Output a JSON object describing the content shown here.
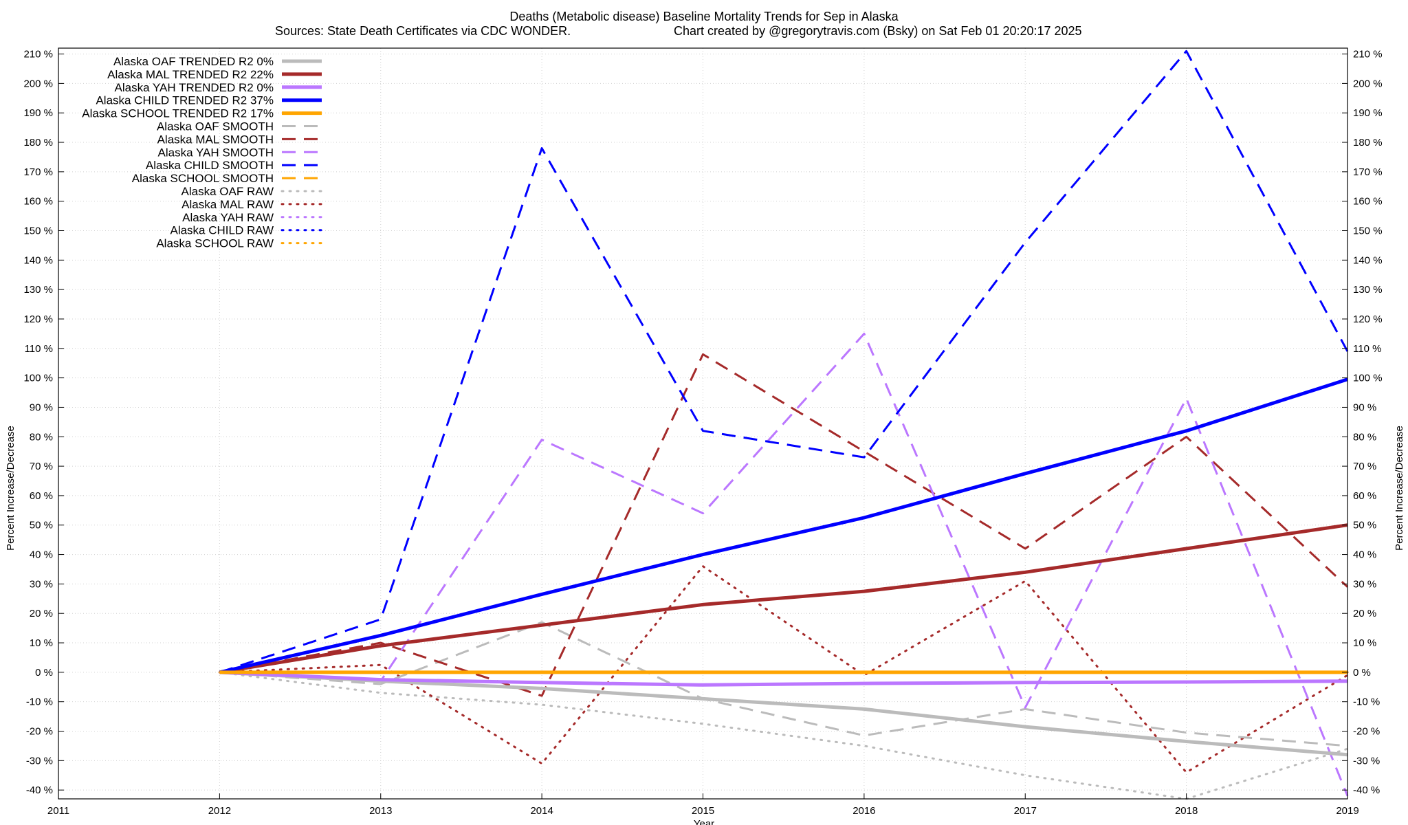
{
  "chart_data": {
    "type": "line",
    "title": "Deaths (Metabolic disease)  Baseline Mortality Trends for Sep in Alaska",
    "subtitle_left": "Sources: State Death Certificates via CDC WONDER.",
    "subtitle_right": "Chart created by @gregorytravis.com (Bsky) on Sat Feb 01 20:20:17 2025",
    "xlabel": "Year",
    "ylabel": "Percent Increase/Decrease",
    "ylabel_right": "Percent Increase/Decrease",
    "xlim": [
      2011,
      2019
    ],
    "ylim": [
      -43,
      212
    ],
    "x_ticks": [
      2011,
      2012,
      2013,
      2014,
      2015,
      2016,
      2017,
      2018,
      2019
    ],
    "y_ticks": [
      -40,
      -30,
      -20,
      -10,
      0,
      10,
      20,
      30,
      40,
      50,
      60,
      70,
      80,
      90,
      100,
      110,
      120,
      130,
      140,
      150,
      160,
      170,
      180,
      190,
      200,
      210
    ],
    "y_tick_suffix": " %",
    "grid": true,
    "legend_position": "top-left",
    "x": [
      2012,
      2013,
      2014,
      2015,
      2016,
      2017,
      2018,
      2019
    ],
    "series": [
      {
        "name": "Alaska OAF TRENDED R2  0%",
        "style": "solid",
        "color": "#bbbbbb",
        "values": [
          0,
          -3,
          -5.5,
          -9,
          -12.5,
          -18.5,
          -23.5,
          -28
        ]
      },
      {
        "name": "Alaska MAL TRENDED R2  22%",
        "style": "solid",
        "color": "#a52a2a",
        "values": [
          0,
          9,
          16,
          23,
          27.5,
          34,
          42,
          50
        ]
      },
      {
        "name": "Alaska YAH TRENDED R2  0%",
        "style": "solid",
        "color": "#bb77ff",
        "values": [
          0,
          -2.5,
          -3.5,
          -4.3,
          -3.8,
          -3.5,
          -3.3,
          -3
        ]
      },
      {
        "name": "Alaska CHILD TRENDED R2  37%",
        "style": "solid",
        "color": "#0000ff",
        "values": [
          0,
          12.5,
          26.5,
          40,
          52.5,
          67.5,
          82,
          99.5
        ]
      },
      {
        "name": "Alaska SCHOOL TRENDED R2  17%",
        "style": "solid",
        "color": "#ffa500",
        "values": [
          0,
          0,
          0,
          0,
          0,
          0,
          0,
          0
        ]
      },
      {
        "name": "Alaska OAF SMOOTH",
        "style": "dashed",
        "color": "#bbbbbb",
        "values": [
          0,
          -4,
          17,
          -9,
          -21.5,
          -12.5,
          -20.5,
          -25
        ]
      },
      {
        "name": "Alaska MAL SMOOTH",
        "style": "dashed",
        "color": "#a52a2a",
        "values": [
          0,
          10,
          -8,
          108,
          75,
          42,
          80,
          29
        ]
      },
      {
        "name": "Alaska YAH SMOOTH",
        "style": "dashed",
        "color": "#bb77ff",
        "values": [
          0,
          -3,
          79,
          54,
          115,
          -12,
          93,
          -42
        ]
      },
      {
        "name": "Alaska CHILD SMOOTH",
        "style": "dashed",
        "color": "#0000ff",
        "values": [
          0,
          18,
          178,
          82,
          73,
          146,
          211,
          109
        ]
      },
      {
        "name": "Alaska SCHOOL SMOOTH",
        "style": "dashed",
        "color": "#ffa500",
        "values": [
          0,
          0,
          0,
          0,
          0,
          0,
          0,
          0
        ]
      },
      {
        "name": "Alaska OAF RAW",
        "style": "dotted",
        "color": "#bbbbbb",
        "values": [
          0,
          -7,
          -11,
          -17.5,
          -25,
          -35,
          -43,
          -26
        ]
      },
      {
        "name": "Alaska MAL RAW",
        "style": "dotted",
        "color": "#a52a2a",
        "values": [
          0,
          2.5,
          -31,
          36,
          -1,
          31,
          -34,
          -1
        ]
      },
      {
        "name": "Alaska YAH RAW",
        "style": "dotted",
        "color": "#bb77ff",
        "values": [
          0,
          0,
          0,
          0,
          0,
          0,
          0,
          0
        ]
      },
      {
        "name": "Alaska CHILD RAW",
        "style": "dotted",
        "color": "#0000ff",
        "values": [
          0,
          0,
          0,
          0,
          0,
          0,
          0,
          0
        ]
      },
      {
        "name": "Alaska SCHOOL RAW",
        "style": "dotted",
        "color": "#ffa500",
        "values": [
          0,
          0,
          0,
          0,
          0,
          0,
          0,
          0
        ]
      }
    ]
  }
}
